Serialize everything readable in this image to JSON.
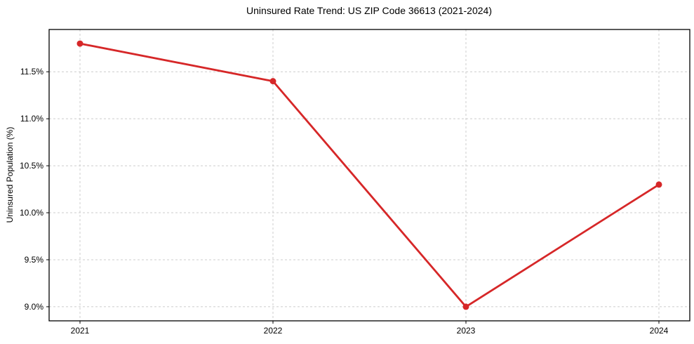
{
  "figure": {
    "background": "#ffffff"
  },
  "chart_data": {
    "type": "line",
    "title": "Uninsured Rate Trend: US ZIP Code 36613 (2021-2024)",
    "xlabel": "",
    "ylabel": "Uninsured Population (%)",
    "x": [
      2021,
      2022,
      2023,
      2024
    ],
    "y": [
      11.8,
      11.4,
      9.0,
      10.3
    ],
    "x_tick_labels": [
      "2021",
      "2022",
      "2023",
      "2024"
    ],
    "y_ticks": [
      9.0,
      9.5,
      10.0,
      10.5,
      11.0,
      11.5
    ],
    "y_tick_labels": [
      "9.0%",
      "9.5%",
      "10.0%",
      "10.5%",
      "11.0%",
      "11.5%"
    ],
    "xlim": [
      2020.84,
      2024.16
    ],
    "ylim": [
      8.85,
      11.95
    ],
    "grid": true,
    "grid_style": "dashed",
    "legend_position": "none",
    "line_color": "#d62728",
    "marker": "circle",
    "grid_color": "#cccccc",
    "axis_color": "#000000",
    "text_color": "#000000"
  }
}
